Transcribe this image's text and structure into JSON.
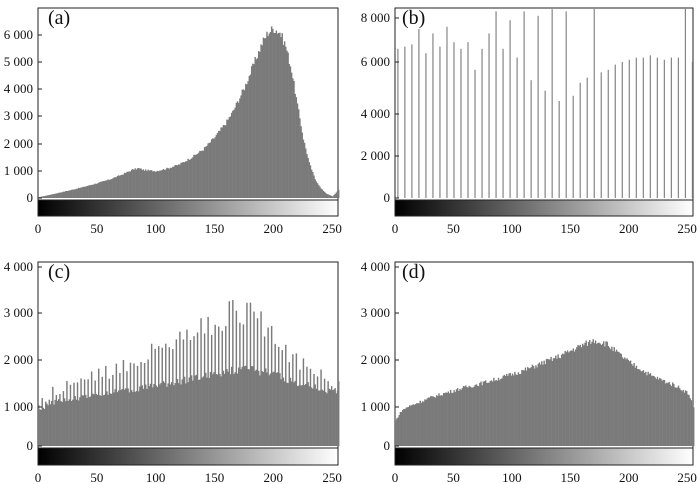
{
  "figure": {
    "x_tick_labels": [
      "0",
      "50",
      "100",
      "150",
      "200",
      "250"
    ],
    "bar_color": "#7a7a7a",
    "axis_color": "#222222"
  },
  "chart_data": [
    {
      "panel_label": "(a)",
      "type": "bar",
      "description_of_shape": "skewed histogram peaking near 200",
      "xlim": [
        0,
        255
      ],
      "ylim": [
        0,
        6500
      ],
      "y_ticks": [
        0,
        1000,
        2000,
        3000,
        4000,
        5000,
        6000
      ],
      "y_tick_labels": [
        "0",
        "1 000",
        "2 000",
        "3 000",
        "4 000",
        "5 000",
        "6 000"
      ],
      "x": [
        0,
        10,
        20,
        30,
        40,
        50,
        60,
        70,
        80,
        85,
        90,
        100,
        110,
        120,
        130,
        140,
        150,
        160,
        165,
        170,
        175,
        180,
        185,
        190,
        195,
        200,
        205,
        210,
        215,
        220,
        225,
        230,
        235,
        240,
        245,
        250,
        255
      ],
      "values": [
        30,
        120,
        220,
        320,
        430,
        550,
        680,
        850,
        1050,
        1100,
        1030,
        1000,
        1100,
        1250,
        1500,
        1800,
        2250,
        2800,
        3150,
        3600,
        4050,
        4600,
        5150,
        5700,
        6100,
        6250,
        6100,
        5600,
        4700,
        3400,
        2200,
        1300,
        700,
        350,
        150,
        60,
        300
      ]
    },
    {
      "panel_label": "(b)",
      "type": "bar",
      "xlim": [
        0,
        255
      ],
      "ylim": [
        0,
        8800
      ],
      "y_ticks": [
        0,
        2000,
        4000,
        6000,
        8000
      ],
      "y_tick_labels": [
        "0",
        "2 000",
        "4 000",
        "6 000",
        "8 000"
      ],
      "spike_spacing": 6,
      "spike_start": 2,
      "values": [
        6600,
        6700,
        6800,
        7500,
        6400,
        7300,
        6700,
        7600,
        6900,
        6600,
        6900,
        5700,
        6600,
        7300,
        8300,
        6600,
        7900,
        6200,
        8300,
        5300,
        8100,
        4900,
        8400,
        4500,
        8300,
        4700,
        5200,
        5400,
        8800,
        5600,
        5700,
        5900,
        6000,
        6100,
        6200,
        6200,
        6300,
        6200,
        6100,
        6200,
        6200,
        8700,
        6000,
        5600,
        4600,
        3800,
        6800,
        6400,
        8000,
        6300,
        6400,
        8400,
        6400
      ]
    },
    {
      "panel_label": "(c)",
      "type": "bar",
      "xlim": [
        0,
        255
      ],
      "ylim": [
        0,
        4200
      ],
      "y_ticks": [
        0,
        1000,
        2000,
        3000,
        4000
      ],
      "y_tick_labels": [
        "0",
        "1 000",
        "2 000",
        "3 000",
        "4 000"
      ],
      "x": [
        0,
        10,
        20,
        30,
        40,
        50,
        60,
        70,
        80,
        90,
        100,
        110,
        120,
        130,
        140,
        150,
        160,
        170,
        180,
        190,
        200,
        210,
        220,
        230,
        240,
        250,
        255
      ],
      "base_values": [
        900,
        1080,
        1150,
        1180,
        1220,
        1260,
        1300,
        1340,
        1380,
        1420,
        1460,
        1500,
        1550,
        1600,
        1650,
        1700,
        1760,
        1800,
        1800,
        1750,
        1700,
        1600,
        1520,
        1450,
        1380,
        1320,
        1280
      ],
      "spike_values": [
        1100,
        1300,
        1450,
        1500,
        1600,
        1700,
        1800,
        1900,
        2000,
        2100,
        2300,
        2400,
        2500,
        2600,
        2700,
        2800,
        3000,
        3100,
        3000,
        2900,
        2500,
        2200,
        2000,
        1800,
        1700,
        1600,
        1500
      ]
    },
    {
      "panel_label": "(d)",
      "type": "bar",
      "xlim": [
        0,
        255
      ],
      "ylim": [
        0,
        4200
      ],
      "y_ticks": [
        0,
        1000,
        2000,
        3000,
        4000
      ],
      "y_tick_labels": [
        "0",
        "1 000",
        "2 000",
        "3 000",
        "4 000"
      ],
      "x": [
        0,
        5,
        10,
        20,
        30,
        40,
        50,
        60,
        70,
        80,
        90,
        100,
        110,
        120,
        130,
        140,
        150,
        160,
        170,
        180,
        190,
        200,
        210,
        220,
        230,
        240,
        250,
        255
      ],
      "values": [
        650,
        900,
        1000,
        1100,
        1200,
        1280,
        1350,
        1420,
        1480,
        1550,
        1620,
        1700,
        1780,
        1880,
        1980,
        2080,
        2200,
        2320,
        2420,
        2350,
        2150,
        1950,
        1800,
        1650,
        1550,
        1450,
        1300,
        1000
      ]
    }
  ]
}
